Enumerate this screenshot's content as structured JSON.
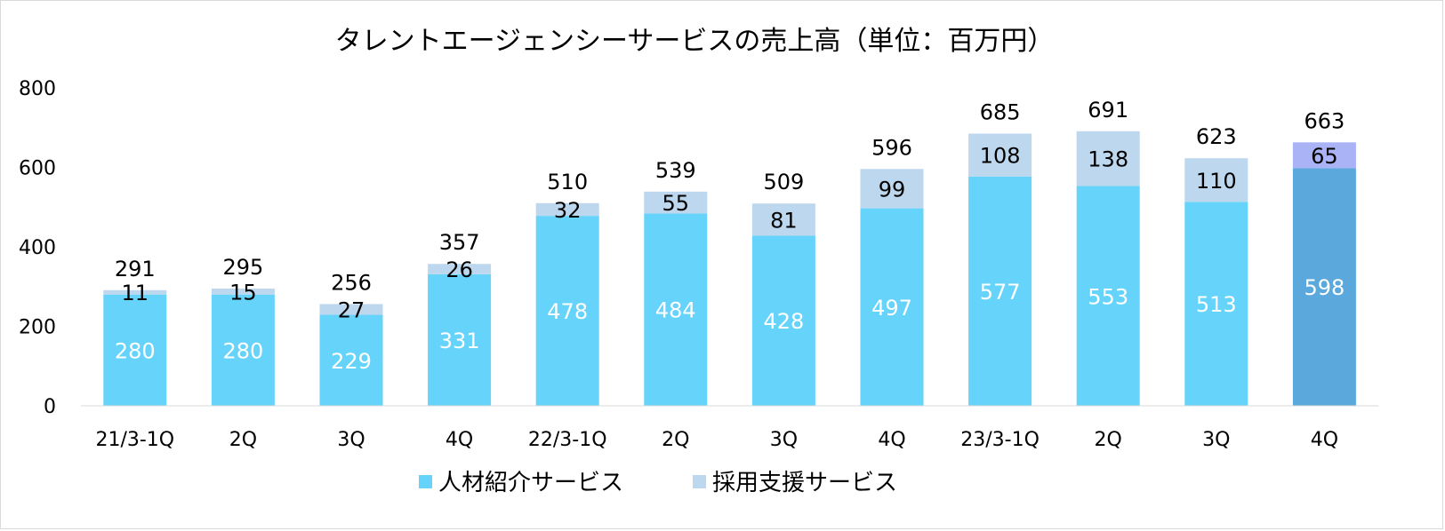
{
  "chart_data": {
    "type": "bar",
    "stacked": true,
    "title": "タレントエージェンシーサービスの売上高（単位：百万円）",
    "categories": [
      "21/3-1Q",
      "2Q",
      "3Q",
      "4Q",
      "22/3-1Q",
      "2Q",
      "3Q",
      "4Q",
      "23/3-1Q",
      "2Q",
      "3Q",
      "4Q"
    ],
    "series": [
      {
        "name": "人材紹介サービス",
        "color": "#66d4fa",
        "highlight_color": "#5aa8dc",
        "values": [
          280,
          280,
          229,
          331,
          478,
          484,
          428,
          497,
          577,
          553,
          513,
          598
        ]
      },
      {
        "name": "採用支援サービス",
        "color": "#bcd7ee",
        "highlight_color": "#a9b3f5",
        "values": [
          11,
          15,
          27,
          26,
          32,
          55,
          81,
          99,
          108,
          138,
          110,
          65
        ]
      }
    ],
    "totals": [
      291,
      295,
      256,
      357,
      510,
      539,
      509,
      596,
      685,
      691,
      623,
      663
    ],
    "highlight_index": 11,
    "ylim": [
      0,
      800
    ],
    "yticks": [
      "0",
      "200",
      "400",
      "600",
      "800"
    ],
    "grid": false,
    "legend_position": "bottom"
  }
}
